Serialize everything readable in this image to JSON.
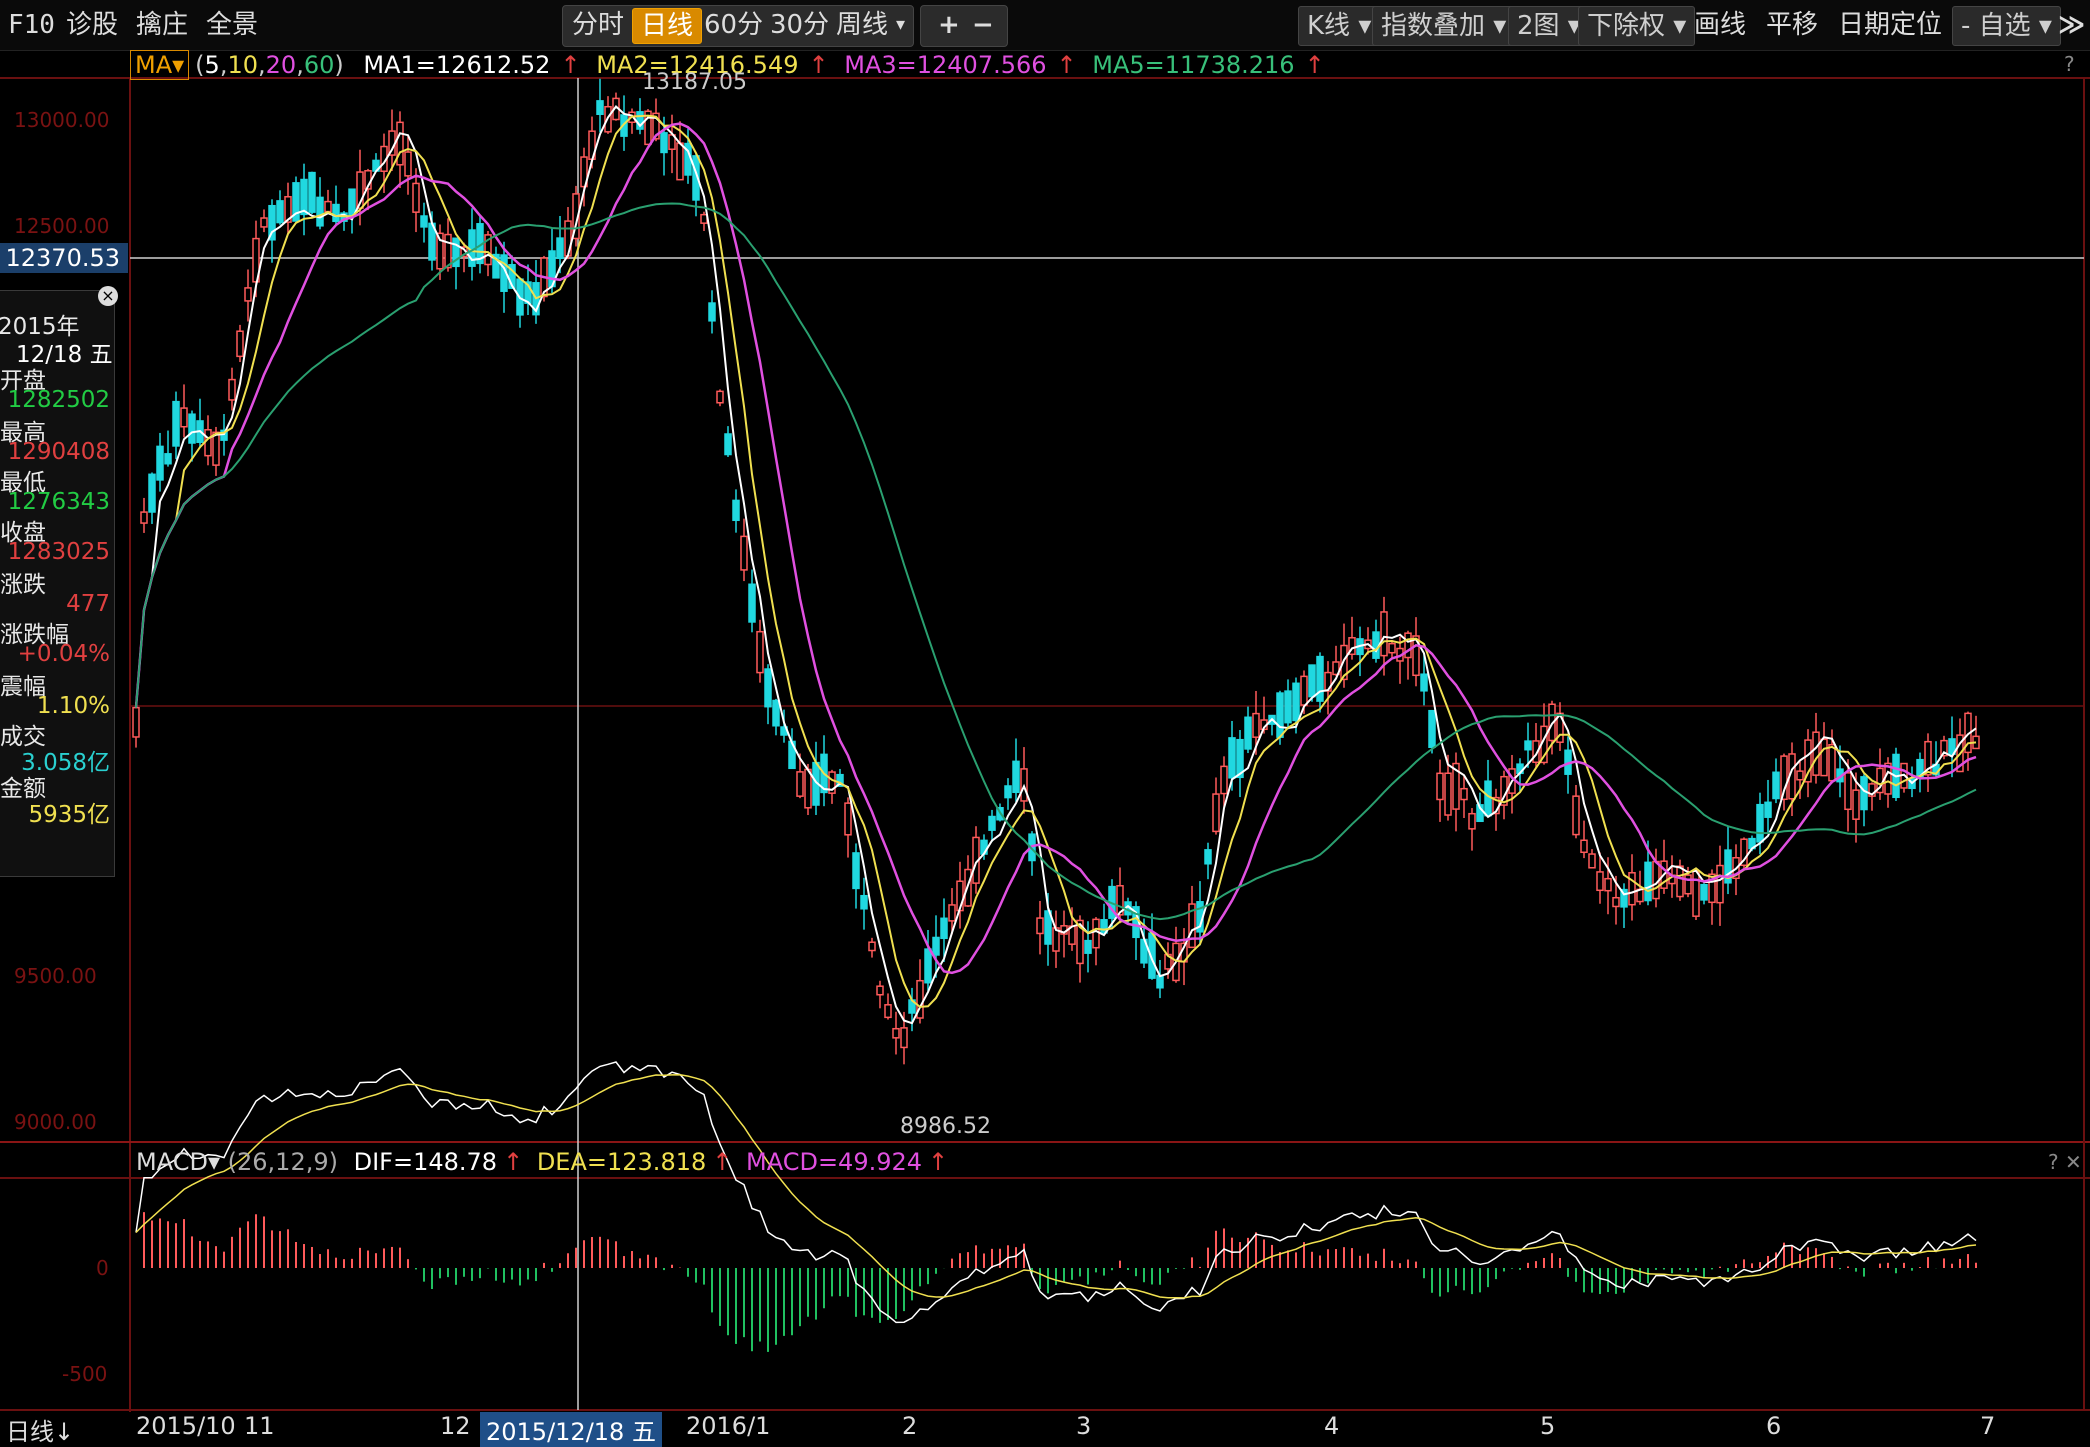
{
  "toolbar": {
    "f10": "F10",
    "diagnose": "诊股",
    "zhuang": "擒庄",
    "panorama": "全景",
    "periods": [
      "分时",
      "日线",
      "60分",
      "30分",
      "周线"
    ],
    "active_period": "日线",
    "zoom_in": "+",
    "zoom_out": "−",
    "kline": "K线",
    "overlay": "指数叠加",
    "two_charts": "2图",
    "exright": "下除权",
    "draw": "画线",
    "pan": "平移",
    "date_locate": "日期定位",
    "self_select": "自选",
    "collapse": "≫"
  },
  "ma_header": {
    "selector": "MA",
    "params_open": "(",
    "p5": "5",
    "p10": "10",
    "p20": "20",
    "p60": "60",
    "params_close": ")",
    "ma1": "MA1=12612.52",
    "ma2": "MA2=12416.549",
    "ma3": "MA3=12407.566",
    "ma5": "MA5=11738.216",
    "colors": {
      "ma1": "#ffffff",
      "ma2": "#f0e050",
      "ma3": "#e050e0",
      "ma5": "#38c07a"
    }
  },
  "price_axis": {
    "high_label": "13000.00",
    "mid_label": "12500.00",
    "crosshair": "12370.53",
    "low1": "9500.00",
    "low2": "9000.00",
    "peak": "13187.05",
    "trough": "8986.52"
  },
  "info_panel": {
    "year": "2015年",
    "date": "12/18 五",
    "open_label": "开盘",
    "open": "1282502",
    "high_label": "最高",
    "high": "1290408",
    "low_label": "最低",
    "low": "1276343",
    "close_label": "收盘",
    "close": "1283025",
    "change_label": "涨跌",
    "change": "477",
    "pct_label": "涨跌幅",
    "pct": "+0.04%",
    "amp_label": "震幅",
    "amp": "1.10%",
    "vol_label": "成交",
    "vol": "3.058亿",
    "amount_label": "金额",
    "amount": "5935亿",
    "close_icon": "×"
  },
  "macd_header": {
    "name": "MACD",
    "params": "(26,12,9)",
    "dif": "DIF=148.78",
    "dea": "DEA=123.818",
    "macd": "MACD=49.924"
  },
  "macd_axis": {
    "zero": "0",
    "neg500": "-500"
  },
  "date_axis": {
    "period": "日线",
    "labels": [
      "2015/10",
      "11",
      "12",
      "2015/12/18 五",
      "2016/1",
      "2",
      "3",
      "4",
      "5",
      "6",
      "7"
    ]
  }
}
